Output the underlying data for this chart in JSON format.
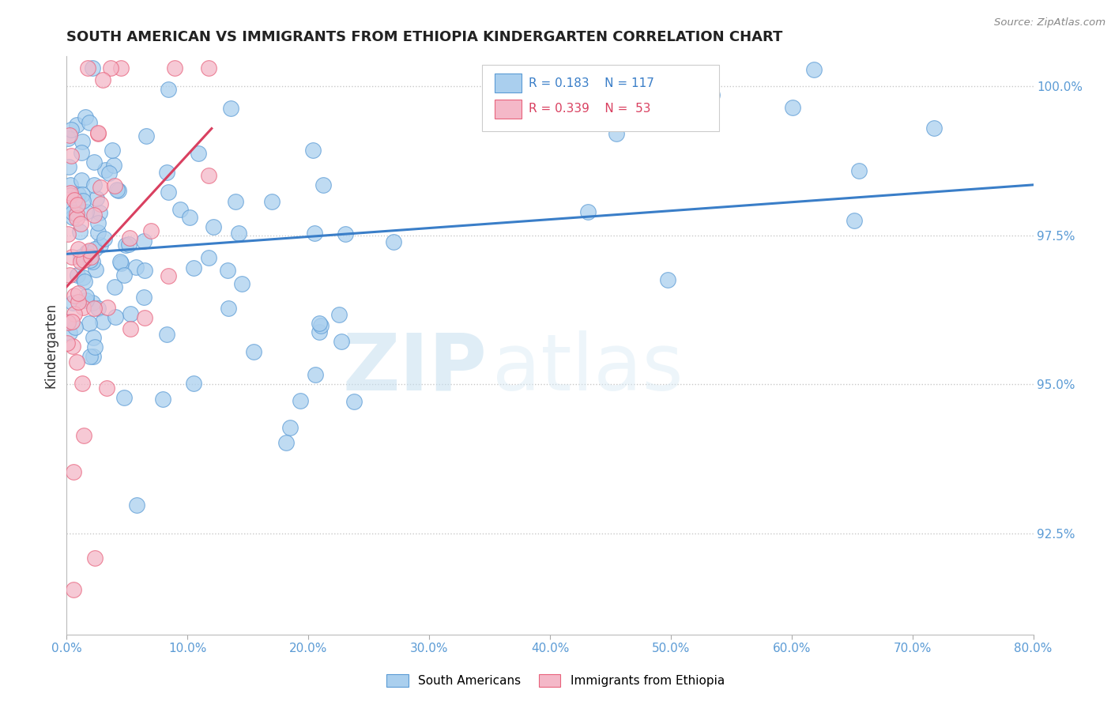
{
  "title": "SOUTH AMERICAN VS IMMIGRANTS FROM ETHIOPIA KINDERGARTEN CORRELATION CHART",
  "source": "Source: ZipAtlas.com",
  "ylabel": "Kindergarten",
  "ylabel_right_ticks": [
    "92.5%",
    "95.0%",
    "97.5%",
    "100.0%"
  ],
  "ylabel_right_vals": [
    0.925,
    0.95,
    0.975,
    1.0
  ],
  "legend_blue": {
    "R": "0.183",
    "N": "117",
    "label": "South Americans"
  },
  "legend_pink": {
    "R": "0.339",
    "N": "53",
    "label": "Immigrants from Ethiopia"
  },
  "blue_color": "#aacfee",
  "pink_color": "#f4b8c8",
  "blue_edge_color": "#5b9bd5",
  "pink_edge_color": "#e8637d",
  "blue_line_color": "#3a7ec8",
  "pink_line_color": "#d94060",
  "background_color": "#ffffff",
  "watermark_zip": "ZIP",
  "watermark_atlas": "atlas",
  "xlim": [
    0,
    80
  ],
  "ylim": [
    0.908,
    1.005
  ],
  "xticks": [
    0,
    10,
    20,
    30,
    40,
    50,
    60,
    70,
    80
  ],
  "xticklabels": [
    "0.0%",
    "10.0%",
    "20.0%",
    "30.0%",
    "40.0%",
    "50.0%",
    "60.0%",
    "70.0%",
    "80.0%"
  ]
}
